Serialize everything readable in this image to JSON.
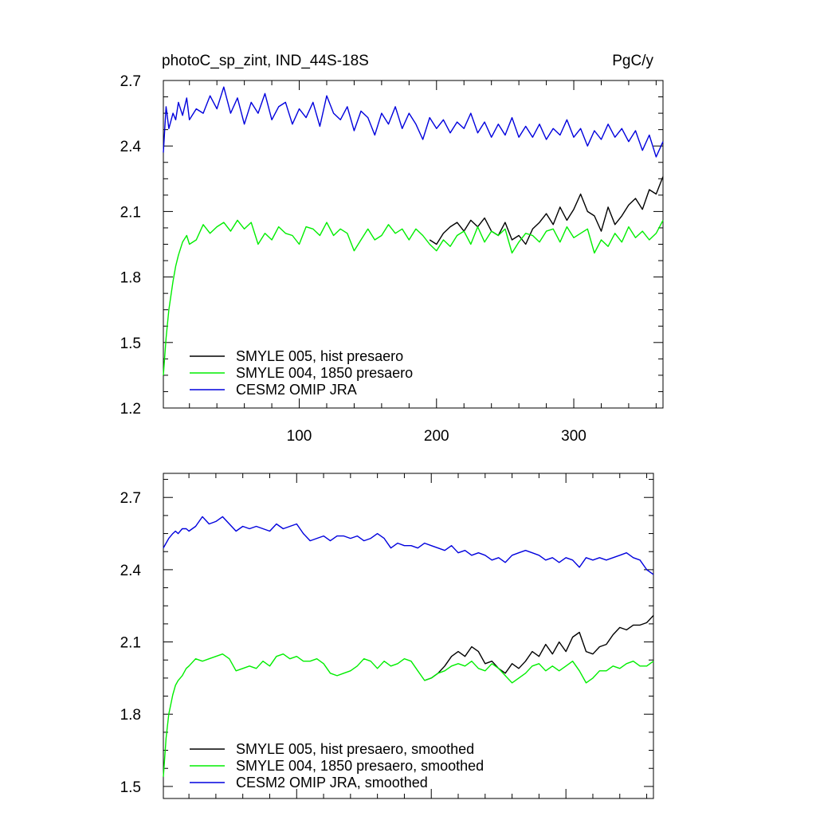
{
  "chart_data": [
    {
      "type": "line",
      "title": "photoC_sp_zint, IND_44S-18S",
      "units": "PgC/y",
      "xlabel": "",
      "ylabel": "",
      "xlim": [
        1,
        365
      ],
      "ylim": [
        1.2,
        2.7
      ],
      "x_ticks": [
        100,
        200,
        300
      ],
      "y_ticks": [
        1.2,
        1.5,
        1.8,
        2.1,
        2.4,
        2.7
      ],
      "y_tick_labels": [
        "1.2",
        "1.5",
        "1.8",
        "2.1",
        "2.4",
        "2.7"
      ],
      "grid": false,
      "legend_position": "bottom-left",
      "series": [
        {
          "name": "SMYLE 005, hist presaero",
          "color": "#000000",
          "x": [
            195,
            200,
            205,
            210,
            215,
            220,
            225,
            230,
            235,
            240,
            245,
            250,
            255,
            260,
            265,
            270,
            275,
            280,
            285,
            290,
            295,
            300,
            305,
            310,
            315,
            320,
            325,
            330,
            335,
            340,
            345,
            350,
            355,
            360,
            365
          ],
          "values": [
            1.97,
            1.95,
            2.0,
            2.03,
            2.05,
            2.01,
            2.06,
            2.03,
            2.07,
            2.01,
            1.99,
            2.05,
            1.97,
            1.99,
            1.95,
            2.02,
            2.05,
            2.09,
            2.04,
            2.12,
            2.06,
            2.11,
            2.18,
            2.1,
            2.08,
            2.01,
            2.12,
            2.04,
            2.08,
            2.13,
            2.16,
            2.11,
            2.2,
            2.18,
            2.26
          ]
        },
        {
          "name": "SMYLE 004, 1850 presaero",
          "color": "#00ee00",
          "x": [
            1,
            3,
            5,
            8,
            10,
            12,
            15,
            18,
            20,
            25,
            30,
            35,
            40,
            45,
            50,
            55,
            60,
            65,
            70,
            75,
            80,
            85,
            90,
            95,
            100,
            105,
            110,
            115,
            120,
            125,
            130,
            135,
            140,
            145,
            150,
            155,
            160,
            165,
            170,
            175,
            180,
            185,
            190,
            195,
            200,
            205,
            210,
            215,
            220,
            225,
            230,
            235,
            240,
            245,
            250,
            255,
            260,
            265,
            270,
            275,
            280,
            285,
            290,
            295,
            300,
            305,
            310,
            315,
            320,
            325,
            330,
            335,
            340,
            345,
            350,
            355,
            360,
            365
          ],
          "values": [
            1.35,
            1.52,
            1.65,
            1.78,
            1.85,
            1.9,
            1.96,
            1.99,
            1.95,
            1.97,
            2.04,
            2.0,
            2.03,
            2.05,
            2.01,
            2.06,
            2.02,
            2.05,
            1.95,
            2.0,
            1.97,
            2.03,
            2.0,
            1.99,
            1.95,
            2.03,
            2.02,
            1.99,
            2.05,
            1.99,
            2.02,
            2.0,
            1.92,
            1.97,
            2.02,
            1.97,
            1.99,
            2.04,
            2.0,
            2.02,
            1.97,
            2.02,
            1.99,
            1.95,
            1.92,
            1.97,
            1.94,
            1.99,
            2.01,
            1.95,
            2.03,
            1.96,
            2.01,
            1.99,
            2.02,
            1.91,
            1.96,
            2.0,
            1.99,
            1.96,
            2.01,
            2.02,
            1.96,
            2.03,
            1.98,
            2.0,
            2.02,
            1.91,
            1.97,
            1.94,
            2.0,
            1.96,
            2.03,
            1.98,
            2.01,
            1.97,
            2.0,
            2.06
          ]
        },
        {
          "name": "CESM2 OMIP JRA",
          "color": "#0000dd",
          "x": [
            1,
            3,
            5,
            8,
            10,
            12,
            15,
            18,
            20,
            25,
            30,
            35,
            40,
            45,
            50,
            55,
            60,
            65,
            70,
            75,
            80,
            85,
            90,
            95,
            100,
            105,
            110,
            115,
            120,
            125,
            130,
            135,
            140,
            145,
            150,
            155,
            160,
            165,
            170,
            175,
            180,
            185,
            190,
            195,
            200,
            205,
            210,
            215,
            220,
            225,
            230,
            235,
            240,
            245,
            250,
            255,
            260,
            265,
            270,
            275,
            280,
            285,
            290,
            295,
            300,
            305,
            310,
            315,
            320,
            325,
            330,
            335,
            340,
            345,
            350,
            355,
            360,
            365
          ],
          "values": [
            2.37,
            2.58,
            2.48,
            2.55,
            2.52,
            2.6,
            2.54,
            2.62,
            2.52,
            2.57,
            2.55,
            2.63,
            2.57,
            2.67,
            2.55,
            2.62,
            2.5,
            2.6,
            2.55,
            2.64,
            2.52,
            2.58,
            2.6,
            2.5,
            2.57,
            2.53,
            2.6,
            2.49,
            2.63,
            2.55,
            2.52,
            2.58,
            2.47,
            2.56,
            2.53,
            2.45,
            2.55,
            2.5,
            2.58,
            2.48,
            2.55,
            2.5,
            2.43,
            2.53,
            2.48,
            2.52,
            2.46,
            2.51,
            2.48,
            2.55,
            2.46,
            2.51,
            2.44,
            2.5,
            2.45,
            2.53,
            2.44,
            2.49,
            2.44,
            2.5,
            2.43,
            2.48,
            2.45,
            2.52,
            2.44,
            2.48,
            2.4,
            2.47,
            2.43,
            2.5,
            2.44,
            2.48,
            2.42,
            2.47,
            2.38,
            2.45,
            2.35,
            2.42
          ]
        }
      ]
    },
    {
      "type": "line",
      "title": "",
      "xlabel": "",
      "ylabel": "",
      "xlim": [
        1,
        365
      ],
      "ylim": [
        1.45,
        2.8
      ],
      "x_ticks": [
        100,
        200,
        300
      ],
      "y_ticks": [
        1.5,
        1.8,
        2.1,
        2.4,
        2.7
      ],
      "y_tick_labels": [
        "1.5",
        "1.8",
        "2.1",
        "2.4",
        "2.7"
      ],
      "grid": false,
      "legend_position": "bottom-left",
      "series": [
        {
          "name": "SMYLE 005, hist presaero, smoothed",
          "color": "#000000",
          "x": [
            195,
            200,
            205,
            210,
            215,
            220,
            225,
            230,
            235,
            240,
            245,
            250,
            255,
            260,
            265,
            270,
            275,
            280,
            285,
            290,
            295,
            300,
            305,
            310,
            315,
            320,
            325,
            330,
            335,
            340,
            345,
            350,
            355,
            360,
            365
          ],
          "values": [
            1.94,
            1.95,
            1.97,
            2.0,
            2.04,
            2.06,
            2.04,
            2.08,
            2.06,
            2.01,
            2.02,
            1.99,
            1.97,
            2.01,
            1.99,
            2.02,
            2.06,
            2.04,
            2.09,
            2.05,
            2.1,
            2.06,
            2.12,
            2.14,
            2.06,
            2.05,
            2.08,
            2.09,
            2.13,
            2.16,
            2.15,
            2.17,
            2.17,
            2.18,
            2.21
          ]
        },
        {
          "name": "SMYLE 004, 1850 presaero, smoothed",
          "color": "#00ee00",
          "x": [
            1,
            3,
            5,
            8,
            10,
            12,
            15,
            18,
            20,
            25,
            30,
            35,
            40,
            45,
            50,
            55,
            60,
            65,
            70,
            75,
            80,
            85,
            90,
            95,
            100,
            105,
            110,
            115,
            120,
            125,
            130,
            135,
            140,
            145,
            150,
            155,
            160,
            165,
            170,
            175,
            180,
            185,
            190,
            195,
            200,
            205,
            210,
            215,
            220,
            225,
            230,
            235,
            240,
            245,
            250,
            255,
            260,
            265,
            270,
            275,
            280,
            285,
            290,
            295,
            300,
            305,
            310,
            315,
            320,
            325,
            330,
            335,
            340,
            345,
            350,
            355,
            360,
            365
          ],
          "values": [
            1.54,
            1.7,
            1.8,
            1.88,
            1.92,
            1.94,
            1.96,
            1.99,
            2.0,
            2.03,
            2.02,
            2.03,
            2.04,
            2.05,
            2.03,
            1.98,
            1.99,
            2.0,
            1.99,
            2.02,
            2.0,
            2.04,
            2.05,
            2.03,
            2.04,
            2.02,
            2.02,
            2.03,
            2.01,
            1.97,
            1.96,
            1.97,
            1.98,
            2.0,
            2.03,
            2.02,
            1.99,
            2.02,
            2.0,
            2.01,
            2.03,
            2.02,
            1.98,
            1.94,
            1.95,
            1.97,
            1.98,
            2.0,
            2.01,
            2.0,
            2.02,
            1.99,
            1.98,
            2.01,
            1.99,
            1.96,
            1.93,
            1.95,
            1.97,
            2.0,
            2.01,
            1.98,
            2.0,
            1.98,
            2.0,
            2.02,
            1.98,
            1.93,
            1.95,
            1.98,
            1.98,
            2.0,
            1.99,
            2.01,
            2.02,
            2.0,
            2.0,
            2.02
          ]
        },
        {
          "name": "CESM2 OMIP JRA, smoothed",
          "color": "#0000dd",
          "x": [
            1,
            3,
            5,
            8,
            10,
            12,
            15,
            18,
            20,
            25,
            30,
            35,
            40,
            45,
            50,
            55,
            60,
            65,
            70,
            75,
            80,
            85,
            90,
            95,
            100,
            105,
            110,
            115,
            120,
            125,
            130,
            135,
            140,
            145,
            150,
            155,
            160,
            165,
            170,
            175,
            180,
            185,
            190,
            195,
            200,
            205,
            210,
            215,
            220,
            225,
            230,
            235,
            240,
            245,
            250,
            255,
            260,
            265,
            270,
            275,
            280,
            285,
            290,
            295,
            300,
            305,
            310,
            315,
            320,
            325,
            330,
            335,
            340,
            345,
            350,
            355,
            360,
            365
          ],
          "values": [
            2.49,
            2.51,
            2.53,
            2.55,
            2.56,
            2.55,
            2.57,
            2.57,
            2.56,
            2.58,
            2.62,
            2.59,
            2.6,
            2.62,
            2.59,
            2.56,
            2.58,
            2.57,
            2.58,
            2.57,
            2.56,
            2.59,
            2.57,
            2.58,
            2.59,
            2.55,
            2.52,
            2.53,
            2.54,
            2.52,
            2.54,
            2.54,
            2.53,
            2.54,
            2.52,
            2.53,
            2.55,
            2.53,
            2.49,
            2.51,
            2.5,
            2.5,
            2.49,
            2.51,
            2.5,
            2.49,
            2.48,
            2.5,
            2.47,
            2.48,
            2.46,
            2.47,
            2.46,
            2.44,
            2.45,
            2.43,
            2.46,
            2.47,
            2.48,
            2.47,
            2.46,
            2.44,
            2.45,
            2.43,
            2.45,
            2.44,
            2.41,
            2.45,
            2.44,
            2.45,
            2.44,
            2.45,
            2.46,
            2.47,
            2.45,
            2.44,
            2.4,
            2.38
          ]
        }
      ]
    }
  ]
}
